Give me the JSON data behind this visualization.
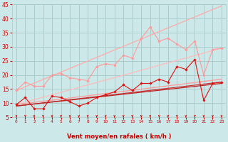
{
  "bg": "#cce8e8",
  "grid_color": "#aacccc",
  "xlabel": "Vent moyen/en rafales ( km/h )",
  "xlabel_color": "#cc0000",
  "tick_color": "#cc0000",
  "x_min": -0.5,
  "x_max": 23.5,
  "y_min": 5,
  "y_max": 45,
  "yticks": [
    5,
    10,
    15,
    20,
    25,
    30,
    35,
    40,
    45
  ],
  "xticks": [
    0,
    1,
    2,
    3,
    4,
    5,
    6,
    7,
    8,
    9,
    10,
    11,
    12,
    13,
    14,
    15,
    16,
    17,
    18,
    19,
    20,
    21,
    22,
    23
  ],
  "lines": [
    {
      "x": [
        0,
        23
      ],
      "y": [
        14.5,
        44.5
      ],
      "color": "#ffaaaa",
      "lw": 0.9,
      "marker": null
    },
    {
      "x": [
        0,
        23
      ],
      "y": [
        9.5,
        29.5
      ],
      "color": "#ffbbbb",
      "lw": 0.9,
      "marker": null
    },
    {
      "x": [
        0,
        23
      ],
      "y": [
        9.5,
        18.5
      ],
      "color": "#ff9999",
      "lw": 0.9,
      "marker": null
    },
    {
      "x": [
        0,
        23
      ],
      "y": [
        9.0,
        17.5
      ],
      "color": "#cc3333",
      "lw": 0.9,
      "marker": null
    },
    {
      "x": [
        0,
        23
      ],
      "y": [
        9.0,
        17.0
      ],
      "color": "#bb2222",
      "lw": 0.9,
      "marker": null
    },
    {
      "x": [
        0,
        1,
        2,
        3,
        4,
        5,
        6,
        7,
        8,
        9,
        10,
        11,
        12,
        13,
        14,
        15,
        16,
        17,
        18,
        19,
        20,
        21,
        22,
        23
      ],
      "y": [
        14.5,
        17.5,
        16.0,
        16.0,
        20.0,
        20.5,
        19.0,
        18.5,
        18.0,
        23.0,
        24.0,
        23.5,
        27.0,
        26.0,
        33.0,
        37.0,
        32.0,
        33.0,
        31.0,
        29.0,
        32.0,
        20.0,
        29.0,
        29.5
      ],
      "color": "#ff9999",
      "lw": 0.8,
      "marker": "D",
      "ms": 1.8
    },
    {
      "x": [
        0,
        1,
        2,
        3,
        4,
        5,
        6,
        7,
        8,
        9,
        10,
        11,
        12,
        13,
        14,
        15,
        16,
        17,
        18,
        19,
        20,
        21,
        22,
        23
      ],
      "y": [
        9.5,
        12.0,
        8.0,
        8.0,
        12.5,
        12.0,
        10.5,
        9.0,
        10.0,
        12.0,
        13.0,
        14.0,
        16.5,
        14.5,
        17.0,
        17.0,
        18.5,
        17.5,
        23.0,
        22.0,
        25.5,
        11.0,
        17.0,
        17.5
      ],
      "color": "#dd1111",
      "lw": 0.8,
      "marker": "D",
      "ms": 1.8
    }
  ],
  "arrow_color": "#cc0000"
}
